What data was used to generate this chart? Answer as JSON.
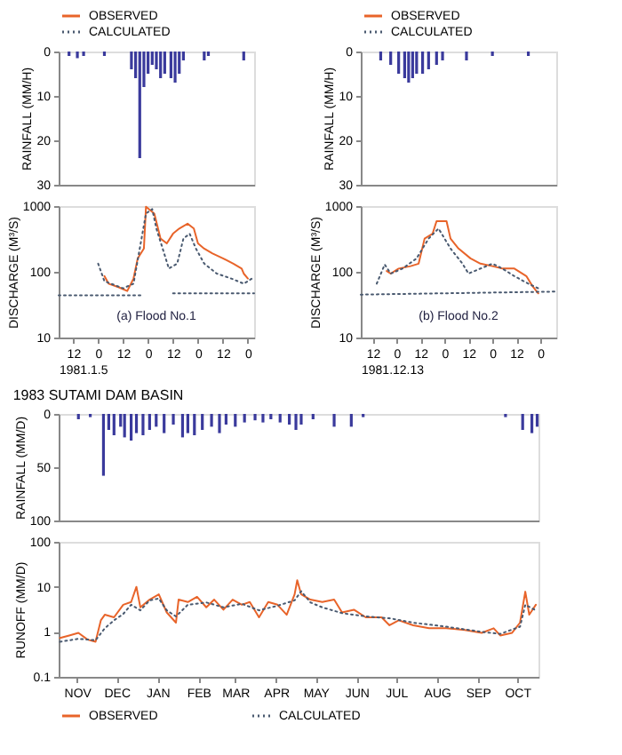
{
  "chart_data": [
    {
      "type": "bar",
      "ylabel": "RAINFALL (MM/H)",
      "x": [
        "1981-01-05T10:00",
        "1981-01-05T14:00",
        "1981-01-05T17:00",
        "1981-01-06T03:00",
        "1981-01-06T16:00",
        "1981-01-06T18:00",
        "1981-01-06T20:00",
        "1981-01-06T22:00",
        "1981-01-07T00:00",
        "1981-01-07T02:00",
        "1981-01-07T04:00",
        "1981-01-07T06:00",
        "1981-01-07T08:00",
        "1981-01-07T11:00",
        "1981-01-07T13:00",
        "1981-01-07T15:00",
        "1981-01-07T17:00",
        "1981-01-08T03:00",
        "1981-01-08T05:00",
        "1981-01-08T22:00"
      ],
      "values": [
        1,
        1.5,
        1,
        1,
        4,
        6,
        24,
        8,
        5,
        3,
        4,
        6,
        5,
        6,
        7,
        5,
        2,
        2,
        1,
        2
      ],
      "color": "#3a3a9c",
      "xlim": [
        "1981-01-05T05:00",
        "1981-01-09T03:00"
      ],
      "ylim": [
        30,
        0
      ],
      "yticks": [
        0,
        10,
        20,
        30
      ],
      "tick_labels": "y",
      "grid": false
    },
    {
      "type": "line",
      "ylabel": "DISCHARGE (M³/S)",
      "xlabel": "1981.1.5",
      "log": true,
      "xlim": [
        "1981-01-05T05:00",
        "1981-01-09T03:00"
      ],
      "xticks": [
        {
          "value": "1981-01-05T12:00",
          "label": "12"
        },
        {
          "value": "1981-01-06T00:00",
          "label": "0"
        },
        {
          "value": "1981-01-06T12:00",
          "label": "12"
        },
        {
          "value": "1981-01-07T00:00",
          "label": "0"
        },
        {
          "value": "1981-01-07T12:00",
          "label": "12"
        },
        {
          "value": "1981-01-08T00:00",
          "label": "0"
        },
        {
          "value": "1981-01-08T12:00",
          "label": "12"
        },
        {
          "value": "1981-01-09T00:00",
          "label": "0"
        }
      ],
      "ylim": [
        10,
        1000
      ],
      "yticks": [
        10,
        100,
        1000
      ],
      "grid": false,
      "legend": "top",
      "annotations": [
        "(a) Flood No.1"
      ],
      "series": [
        {
          "name": "OBSERVED",
          "color": "#e8642a",
          "line_style": "solid",
          "x": [
            "1981-01-06T03:00",
            "1981-01-06T05:00",
            "1981-01-06T10:00",
            "1981-01-06T14:00",
            "1981-01-06T17:00",
            "1981-01-06T19:00",
            "1981-01-06T22:00",
            "1981-01-06T23:00",
            "1981-01-07T03:00",
            "1981-01-07T06:00",
            "1981-01-07T09:00",
            "1981-01-07T12:00",
            "1981-01-07T15:00",
            "1981-01-07T19:00",
            "1981-01-07T22:00",
            "1981-01-08T00:00",
            "1981-01-08T03:00",
            "1981-01-08T07:00",
            "1981-01-08T12:00",
            "1981-01-08T17:00",
            "1981-01-08T21:00",
            "1981-01-08T22:00",
            "1981-01-09T00:00"
          ],
          "values": [
            86,
            66,
            58,
            51,
            79,
            159,
            226,
            980,
            770,
            320,
            270,
            380,
            455,
            540,
            455,
            270,
            225,
            190,
            160,
            133,
            112,
            94,
            79
          ]
        },
        {
          "name": "CALCULATED",
          "color": "#4a5a70",
          "line_style": "dotted",
          "x": [
            "1981-01-06T00:00",
            "1981-01-06T03:00",
            "1981-01-06T12:00",
            "1981-01-06T17:00",
            "1981-01-06T20:00",
            "1981-01-06T23:00",
            "1981-01-07T02:00",
            "1981-01-07T04:00",
            "1981-01-07T07:00",
            "1981-01-07T10:00",
            "1981-01-07T14:00",
            "1981-01-07T17:00",
            "1981-01-07T20:00",
            "1981-01-07T23:00",
            "1981-01-08T03:00",
            "1981-01-08T09:00",
            "1981-01-08T16:00",
            "1981-01-08T22:00",
            "1981-01-09T02:00"
          ],
          "values": [
            133,
            72,
            56,
            66,
            226,
            770,
            900,
            455,
            226,
            112,
            133,
            320,
            380,
            226,
            133,
            94,
            79,
            66,
            79
          ]
        },
        {
          "color": "#4a5a70",
          "line_style": "dotted",
          "x": [
            "1981-01-05T05:00",
            "1981-01-06T22:00"
          ],
          "values": [
            44,
            44
          ]
        },
        {
          "color": "#4a5a70",
          "line_style": "dotted",
          "x": [
            "1981-01-07T12:00",
            "1981-01-09T03:00"
          ],
          "values": [
            47,
            47
          ]
        }
      ]
    },
    {
      "type": "bar",
      "ylabel": "RAINFALL (MM/H)",
      "x": [
        "1981-12-13T16:00",
        "1981-12-13T21:00",
        "1981-12-14T01:00",
        "1981-12-14T04:00",
        "1981-12-14T06:00",
        "1981-12-14T08:00",
        "1981-12-14T10:00",
        "1981-12-14T13:00",
        "1981-12-14T16:00",
        "1981-12-14T20:00",
        "1981-12-14T23:00",
        "1981-12-15T11:00",
        "1981-12-16T00:00",
        "1981-12-16T18:00"
      ],
      "values": [
        2,
        3,
        5,
        6,
        7,
        6,
        5,
        5,
        4,
        3,
        2,
        2,
        1,
        1
      ],
      "color": "#3a3a9c",
      "xlim": [
        "1981-12-13T06:00",
        "1981-12-17T08:00"
      ],
      "ylim": [
        30,
        0
      ],
      "yticks": [
        0,
        10,
        20,
        30
      ],
      "tick_labels": "y",
      "grid": false
    },
    {
      "type": "line",
      "ylabel": "DISCHARGE (M³/S)",
      "xlabel": "1981.12.13",
      "log": true,
      "xlim": [
        "1981-12-13T06:00",
        "1981-12-17T08:00"
      ],
      "xticks": [
        {
          "value": "1981-12-13T12:00",
          "label": "12"
        },
        {
          "value": "1981-12-14T00:00",
          "label": "0"
        },
        {
          "value": "1981-12-14T12:00",
          "label": "12"
        },
        {
          "value": "1981-12-15T00:00",
          "label": "0"
        },
        {
          "value": "1981-12-15T12:00",
          "label": "12"
        },
        {
          "value": "1981-12-16T00:00",
          "label": "0"
        },
        {
          "value": "1981-12-16T12:00",
          "label": "12"
        },
        {
          "value": "1981-12-17T00:00",
          "label": "0"
        }
      ],
      "ylim": [
        10,
        1000
      ],
      "yticks": [
        10,
        100,
        1000
      ],
      "grid": false,
      "legend": "top",
      "annotations": [
        "(b) Flood No.2"
      ],
      "series": [
        {
          "name": "OBSERVED",
          "color": "#e8642a",
          "line_style": "solid",
          "x": [
            "1981-12-13T19:00",
            "1981-12-13T21:00",
            "1981-12-14T01:00",
            "1981-12-14T07:00",
            "1981-12-14T11:00",
            "1981-12-14T14:00",
            "1981-12-14T18:00",
            "1981-12-14T20:00",
            "1981-12-15T01:00",
            "1981-12-15T03:00",
            "1981-12-15T07:00",
            "1981-12-15T13:00",
            "1981-12-15T18:00",
            "1981-12-16T00:00",
            "1981-12-16T05:00",
            "1981-12-16T11:00",
            "1981-12-16T17:00",
            "1981-12-16T20:00",
            "1981-12-16T23:00"
          ],
          "values": [
            103,
            94,
            112,
            122,
            133,
            320,
            380,
            590,
            590,
            320,
            226,
            160,
            133,
            122,
            112,
            112,
            86,
            61,
            47
          ]
        },
        {
          "name": "CALCULATED",
          "color": "#4a5a70",
          "line_style": "dotted",
          "x": [
            "1981-12-13T14:00",
            "1981-12-13T18:00",
            "1981-12-13T21:00",
            "1981-12-14T03:00",
            "1981-12-14T10:00",
            "1981-12-14T16:00",
            "1981-12-14T21:00",
            "1981-12-15T03:00",
            "1981-12-15T09:00",
            "1981-12-15T12:00",
            "1981-12-15T18:00",
            "1981-12-16T00:00",
            "1981-12-16T05:00",
            "1981-12-16T11:00",
            "1981-12-16T18:00",
            "1981-12-16T23:00"
          ],
          "values": [
            66,
            129,
            94,
            112,
            160,
            320,
            455,
            226,
            133,
            94,
            112,
            133,
            112,
            86,
            66,
            56
          ]
        },
        {
          "color": "#4a5a70",
          "line_style": "dotted",
          "x": [
            "1981-12-13T06:00",
            "1981-12-17T08:00"
          ],
          "values": [
            45,
            50
          ]
        }
      ]
    },
    {
      "type": "bar",
      "title": "1983  SUTAMI DAM BASIN",
      "ylabel": "RAINFALL (MM/D)",
      "x": [
        "1982-11-16",
        "1982-11-25",
        "1982-12-05",
        "1982-12-09",
        "1982-12-13",
        "1982-12-18",
        "1982-12-21",
        "1982-12-26",
        "1982-12-30",
        "1983-01-04",
        "1983-01-09",
        "1983-01-14",
        "1983-01-20",
        "1983-01-27",
        "1983-02-03",
        "1983-02-07",
        "1983-02-12",
        "1983-02-18",
        "1983-02-25",
        "1983-03-03",
        "1983-03-08",
        "1983-03-15",
        "1983-03-22",
        "1983-03-30",
        "1983-04-05",
        "1983-04-11",
        "1983-04-18",
        "1983-04-25",
        "1983-04-30",
        "1983-05-04",
        "1983-05-13",
        "1983-05-29",
        "1983-06-11",
        "1983-06-20",
        "1983-10-06",
        "1983-10-19",
        "1983-10-26",
        "1983-10-30"
      ],
      "values": [
        5,
        3,
        58,
        15,
        20,
        12,
        22,
        25,
        18,
        20,
        15,
        12,
        18,
        10,
        22,
        18,
        20,
        15,
        12,
        18,
        10,
        12,
        8,
        6,
        8,
        5,
        8,
        10,
        15,
        10,
        5,
        12,
        12,
        3,
        3,
        15,
        18,
        12
      ],
      "color": "#3a3a9c",
      "xlim": [
        "1982-11-01",
        "1983-10-31"
      ],
      "ylim": [
        100,
        0
      ],
      "yticks": [
        0,
        50,
        100
      ],
      "tick_labels": "y",
      "grid": false
    },
    {
      "type": "line",
      "ylabel": "RUNOFF (MM/D)",
      "log": true,
      "xlim": [
        "1982-11-01",
        "1983-10-31"
      ],
      "xticks": [
        {
          "value": "1982-11-15",
          "label": "NOV"
        },
        {
          "value": "1982-12-15",
          "label": "DEC"
        },
        {
          "value": "1983-01-15",
          "label": "JAN"
        },
        {
          "value": "1983-02-15",
          "label": "FEB"
        },
        {
          "value": "1983-03-15",
          "label": "MAR"
        },
        {
          "value": "1983-04-15",
          "label": "APR"
        },
        {
          "value": "1983-05-15",
          "label": "MAY"
        },
        {
          "value": "1983-06-15",
          "label": "JUN"
        },
        {
          "value": "1983-07-15",
          "label": "JUL"
        },
        {
          "value": "1983-08-15",
          "label": "AUG"
        },
        {
          "value": "1983-09-15",
          "label": "SEP"
        },
        {
          "value": "1983-10-15",
          "label": "OCT"
        }
      ],
      "ylim": [
        0.1,
        100
      ],
      "yticks": [
        0.1,
        1,
        10,
        100
      ],
      "grid": false,
      "legend": "bottom",
      "series": [
        {
          "name": "OBSERVED",
          "color": "#e8642a",
          "line_style": "solid",
          "x": [
            "1982-11-02",
            "1982-11-09",
            "1982-11-16",
            "1982-11-23",
            "1982-11-29",
            "1982-12-03",
            "1982-12-06",
            "1982-12-13",
            "1982-12-20",
            "1982-12-26",
            "1982-12-30",
            "1983-01-02",
            "1983-01-09",
            "1983-01-16",
            "1983-01-22",
            "1983-01-29",
            "1983-01-31",
            "1983-02-07",
            "1983-02-14",
            "1983-02-21",
            "1983-02-27",
            "1983-03-06",
            "1983-03-13",
            "1983-03-20",
            "1983-03-26",
            "1983-04-02",
            "1983-04-09",
            "1983-04-16",
            "1983-04-23",
            "1983-04-29",
            "1983-05-01",
            "1983-05-04",
            "1983-05-11",
            "1983-05-20",
            "1983-05-29",
            "1983-06-04",
            "1983-06-13",
            "1983-06-22",
            "1983-07-04",
            "1983-07-10",
            "1983-07-17",
            "1983-07-28",
            "1983-08-09",
            "1983-08-22",
            "1983-09-05",
            "1983-09-18",
            "1983-09-27",
            "1983-10-02",
            "1983-10-11",
            "1983-10-17",
            "1983-10-21",
            "1983-10-24",
            "1983-10-29"
          ],
          "values": [
            0.73,
            0.83,
            0.95,
            0.67,
            0.6,
            1.8,
            2.4,
            2.1,
            4,
            4.6,
            10,
            3.5,
            5.2,
            6.8,
            2.7,
            1.6,
            5.2,
            4.6,
            6,
            3.5,
            5.2,
            3.1,
            5.2,
            4,
            4.6,
            2.1,
            4.6,
            4,
            2.4,
            6.8,
            14,
            6.8,
            5.2,
            4.6,
            5.2,
            2.7,
            3.1,
            2.1,
            2.1,
            1.4,
            1.8,
            1.4,
            1.2,
            1.2,
            1.1,
            0.95,
            1.2,
            0.83,
            0.95,
            1.6,
            7.8,
            2.4,
            4
          ]
        },
        {
          "name": "CALCULATED",
          "color": "#4a5a70",
          "line_style": "dotted",
          "x": [
            "1982-11-02",
            "1982-11-16",
            "1982-11-29",
            "1982-12-06",
            "1982-12-13",
            "1982-12-20",
            "1982-12-26",
            "1983-01-02",
            "1983-01-09",
            "1983-01-16",
            "1983-01-22",
            "1983-01-29",
            "1983-02-07",
            "1983-02-21",
            "1983-03-06",
            "1983-03-20",
            "1983-04-02",
            "1983-04-16",
            "1983-04-29",
            "1983-05-04",
            "1983-05-11",
            "1983-05-20",
            "1983-06-04",
            "1983-06-22",
            "1983-07-10",
            "1983-07-28",
            "1983-08-22",
            "1983-09-18",
            "1983-10-02",
            "1983-10-17",
            "1983-10-21",
            "1983-10-29"
          ],
          "values": [
            0.6,
            0.7,
            0.65,
            1.2,
            1.8,
            2.5,
            4,
            3,
            5,
            5.5,
            3,
            2.2,
            4,
            4.5,
            3.5,
            4.2,
            3,
            3.8,
            5,
            8,
            4.5,
            3.5,
            2.6,
            2.2,
            2,
            1.6,
            1.3,
            1,
            0.9,
            1.3,
            4,
            3
          ]
        }
      ]
    }
  ]
}
